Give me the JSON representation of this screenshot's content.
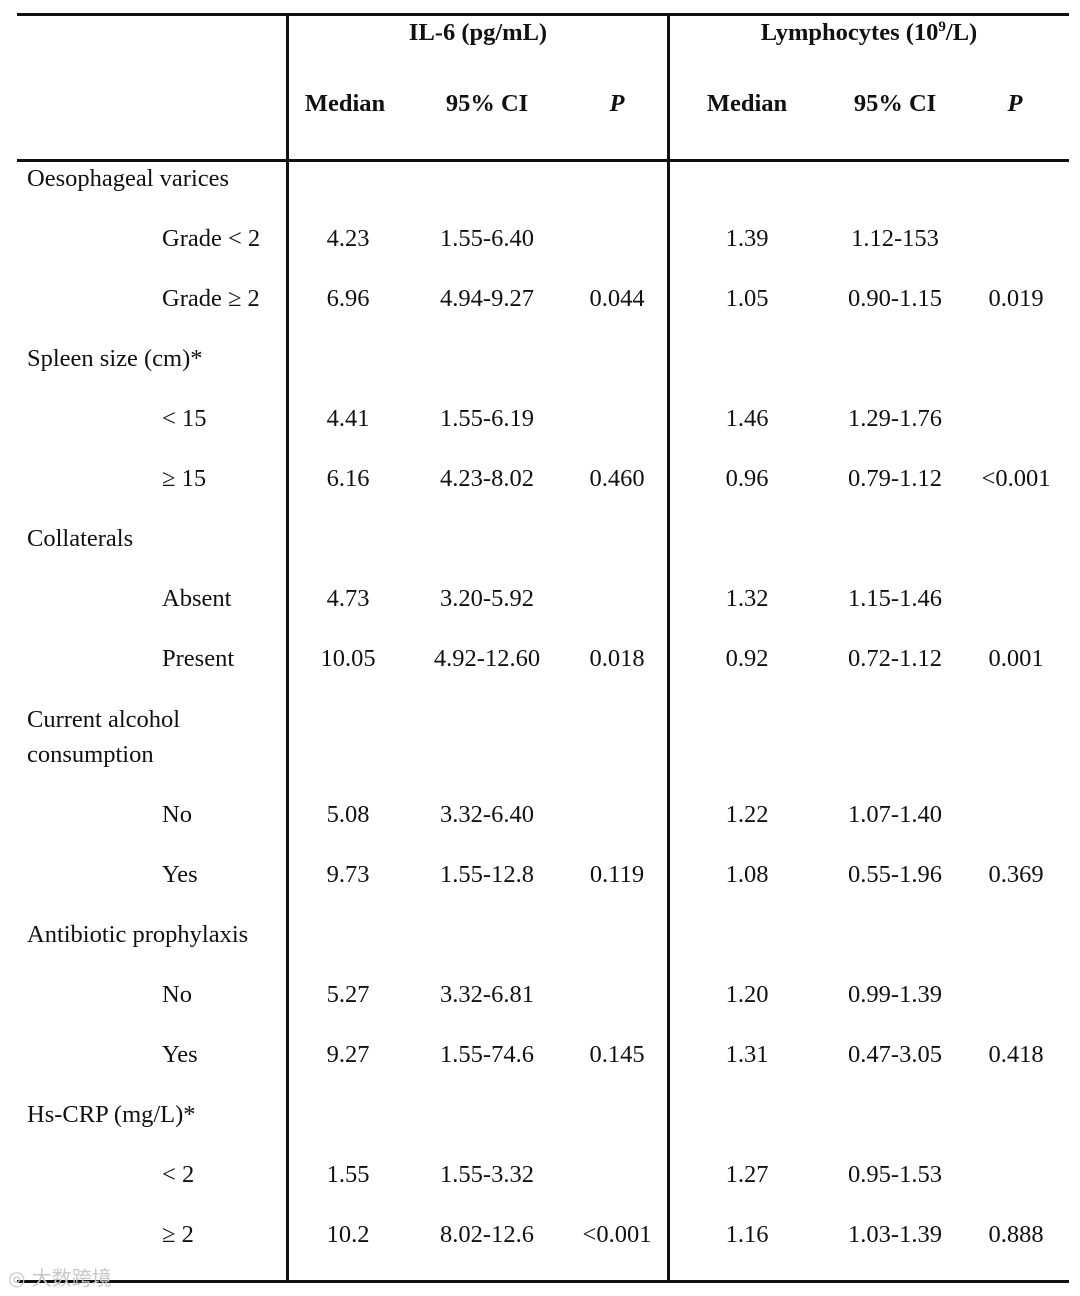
{
  "header": {
    "group1": "IL-6 (pg/mL)",
    "group2_prefix": "Lymphocytes (10",
    "group2_sup": "9",
    "group2_suffix": "/L)",
    "median": "Median",
    "ci": "95% CI",
    "p": "P"
  },
  "rows": [
    {
      "label": "Oesophageal varices"
    },
    {
      "sub": "Grade < 2",
      "il6_median": "4.23",
      "il6_ci": "1.55-6.40",
      "il6_p": "",
      "ly_median": "1.39",
      "ly_ci": "1.12-153",
      "ly_p": ""
    },
    {
      "sub": "Grade ≥ 2",
      "il6_median": "6.96",
      "il6_ci": "4.94-9.27",
      "il6_p": "0.044",
      "ly_median": "1.05",
      "ly_ci": "0.90-1.15",
      "ly_p": "0.019"
    },
    {
      "label": "Spleen size (cm)*"
    },
    {
      "sub": "< 15",
      "il6_median": "4.41",
      "il6_ci": "1.55-6.19",
      "il6_p": "",
      "ly_median": "1.46",
      "ly_ci": "1.29-1.76",
      "ly_p": ""
    },
    {
      "sub": "≥ 15",
      "il6_median": "6.16",
      "il6_ci": "4.23-8.02",
      "il6_p": "0.460",
      "ly_median": "0.96",
      "ly_ci": "0.79-1.12",
      "ly_p": "<0.001"
    },
    {
      "label": "Collaterals"
    },
    {
      "sub": "Absent",
      "il6_median": "4.73",
      "il6_ci": "3.20-5.92",
      "il6_p": "",
      "ly_median": "1.32",
      "ly_ci": "1.15-1.46",
      "ly_p": ""
    },
    {
      "sub": "Present",
      "il6_median": "10.05",
      "il6_ci": "4.92-12.60",
      "il6_p": "0.018",
      "ly_median": "0.92",
      "ly_ci": "0.72-1.12",
      "ly_p": "0.001"
    },
    {
      "label_line1": "Current alcohol",
      "label_line2": "consumption"
    },
    {
      "sub": "No",
      "il6_median": "5.08",
      "il6_ci": "3.32-6.40",
      "il6_p": "",
      "ly_median": "1.22",
      "ly_ci": "1.07-1.40",
      "ly_p": ""
    },
    {
      "sub": "Yes",
      "il6_median": "9.73",
      "il6_ci": "1.55-12.8",
      "il6_p": "0.119",
      "ly_median": "1.08",
      "ly_ci": "0.55-1.96",
      "ly_p": "0.369"
    },
    {
      "label": "Antibiotic prophylaxis"
    },
    {
      "sub": "No",
      "il6_median": "5.27",
      "il6_ci": "3.32-6.81",
      "il6_p": "",
      "ly_median": "1.20",
      "ly_ci": "0.99-1.39",
      "ly_p": ""
    },
    {
      "sub": "Yes",
      "il6_median": "9.27",
      "il6_ci": "1.55-74.6",
      "il6_p": "0.145",
      "ly_median": "1.31",
      "ly_ci": "0.47-3.05",
      "ly_p": "0.418"
    },
    {
      "label": "Hs-CRP (mg/L)*"
    },
    {
      "sub": "< 2",
      "il6_median": "1.55",
      "il6_ci": "1.55-3.32",
      "il6_p": "",
      "ly_median": "1.27",
      "ly_ci": "0.95-1.53",
      "ly_p": ""
    },
    {
      "sub": "≥ 2",
      "il6_median": "10.2",
      "il6_ci": "8.02-12.6",
      "il6_p": "<0.001",
      "ly_median": "1.16",
      "ly_ci": "1.03-1.39",
      "ly_p": "0.888"
    }
  ],
  "watermark": "大数跨境"
}
